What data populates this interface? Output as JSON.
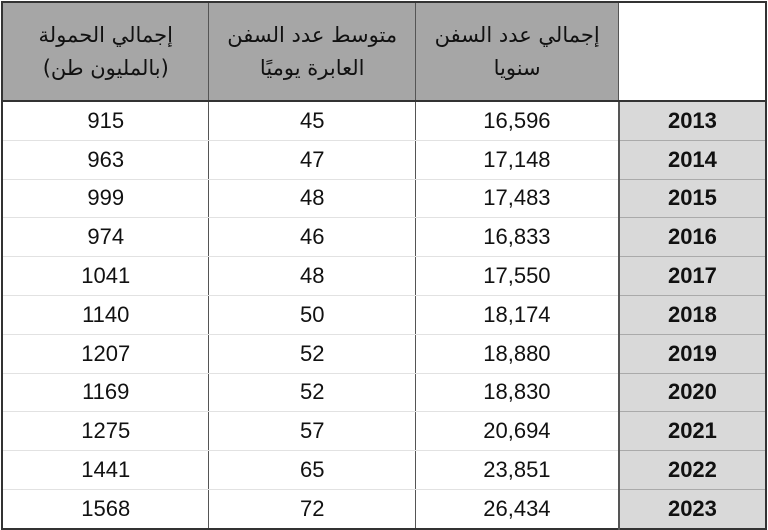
{
  "headers": {
    "tonnage": "إجمالي الحمولة (بالمليون طن)",
    "avg_daily": "متوسط عدد السفن العابرة يوميًا",
    "total_annual": "إجمالي عدد السفن سنويا",
    "year": ""
  },
  "colors": {
    "header_bg": "#a6a6a6",
    "year_bg": "#d9d9d9"
  },
  "rows": [
    {
      "year": "2013",
      "total_annual": "16,596",
      "avg_daily": "45",
      "tonnage": "915"
    },
    {
      "year": "2014",
      "total_annual": "17,148",
      "avg_daily": "47",
      "tonnage": "963"
    },
    {
      "year": "2015",
      "total_annual": "17,483",
      "avg_daily": "48",
      "tonnage": "999"
    },
    {
      "year": "2016",
      "total_annual": "16,833",
      "avg_daily": "46",
      "tonnage": "974"
    },
    {
      "year": "2017",
      "total_annual": "17,550",
      "avg_daily": "48",
      "tonnage": "1041"
    },
    {
      "year": "2018",
      "total_annual": "18,174",
      "avg_daily": "50",
      "tonnage": "1140"
    },
    {
      "year": "2019",
      "total_annual": "18,880",
      "avg_daily": "52",
      "tonnage": "1207"
    },
    {
      "year": "2020",
      "total_annual": "18,830",
      "avg_daily": "52",
      "tonnage": "1169"
    },
    {
      "year": "2021",
      "total_annual": "20,694",
      "avg_daily": "57",
      "tonnage": "1275"
    },
    {
      "year": "2022",
      "total_annual": "23,851",
      "avg_daily": "65",
      "tonnage": "1441"
    },
    {
      "year": "2023",
      "total_annual": "26,434",
      "avg_daily": "72",
      "tonnage": "1568"
    }
  ]
}
